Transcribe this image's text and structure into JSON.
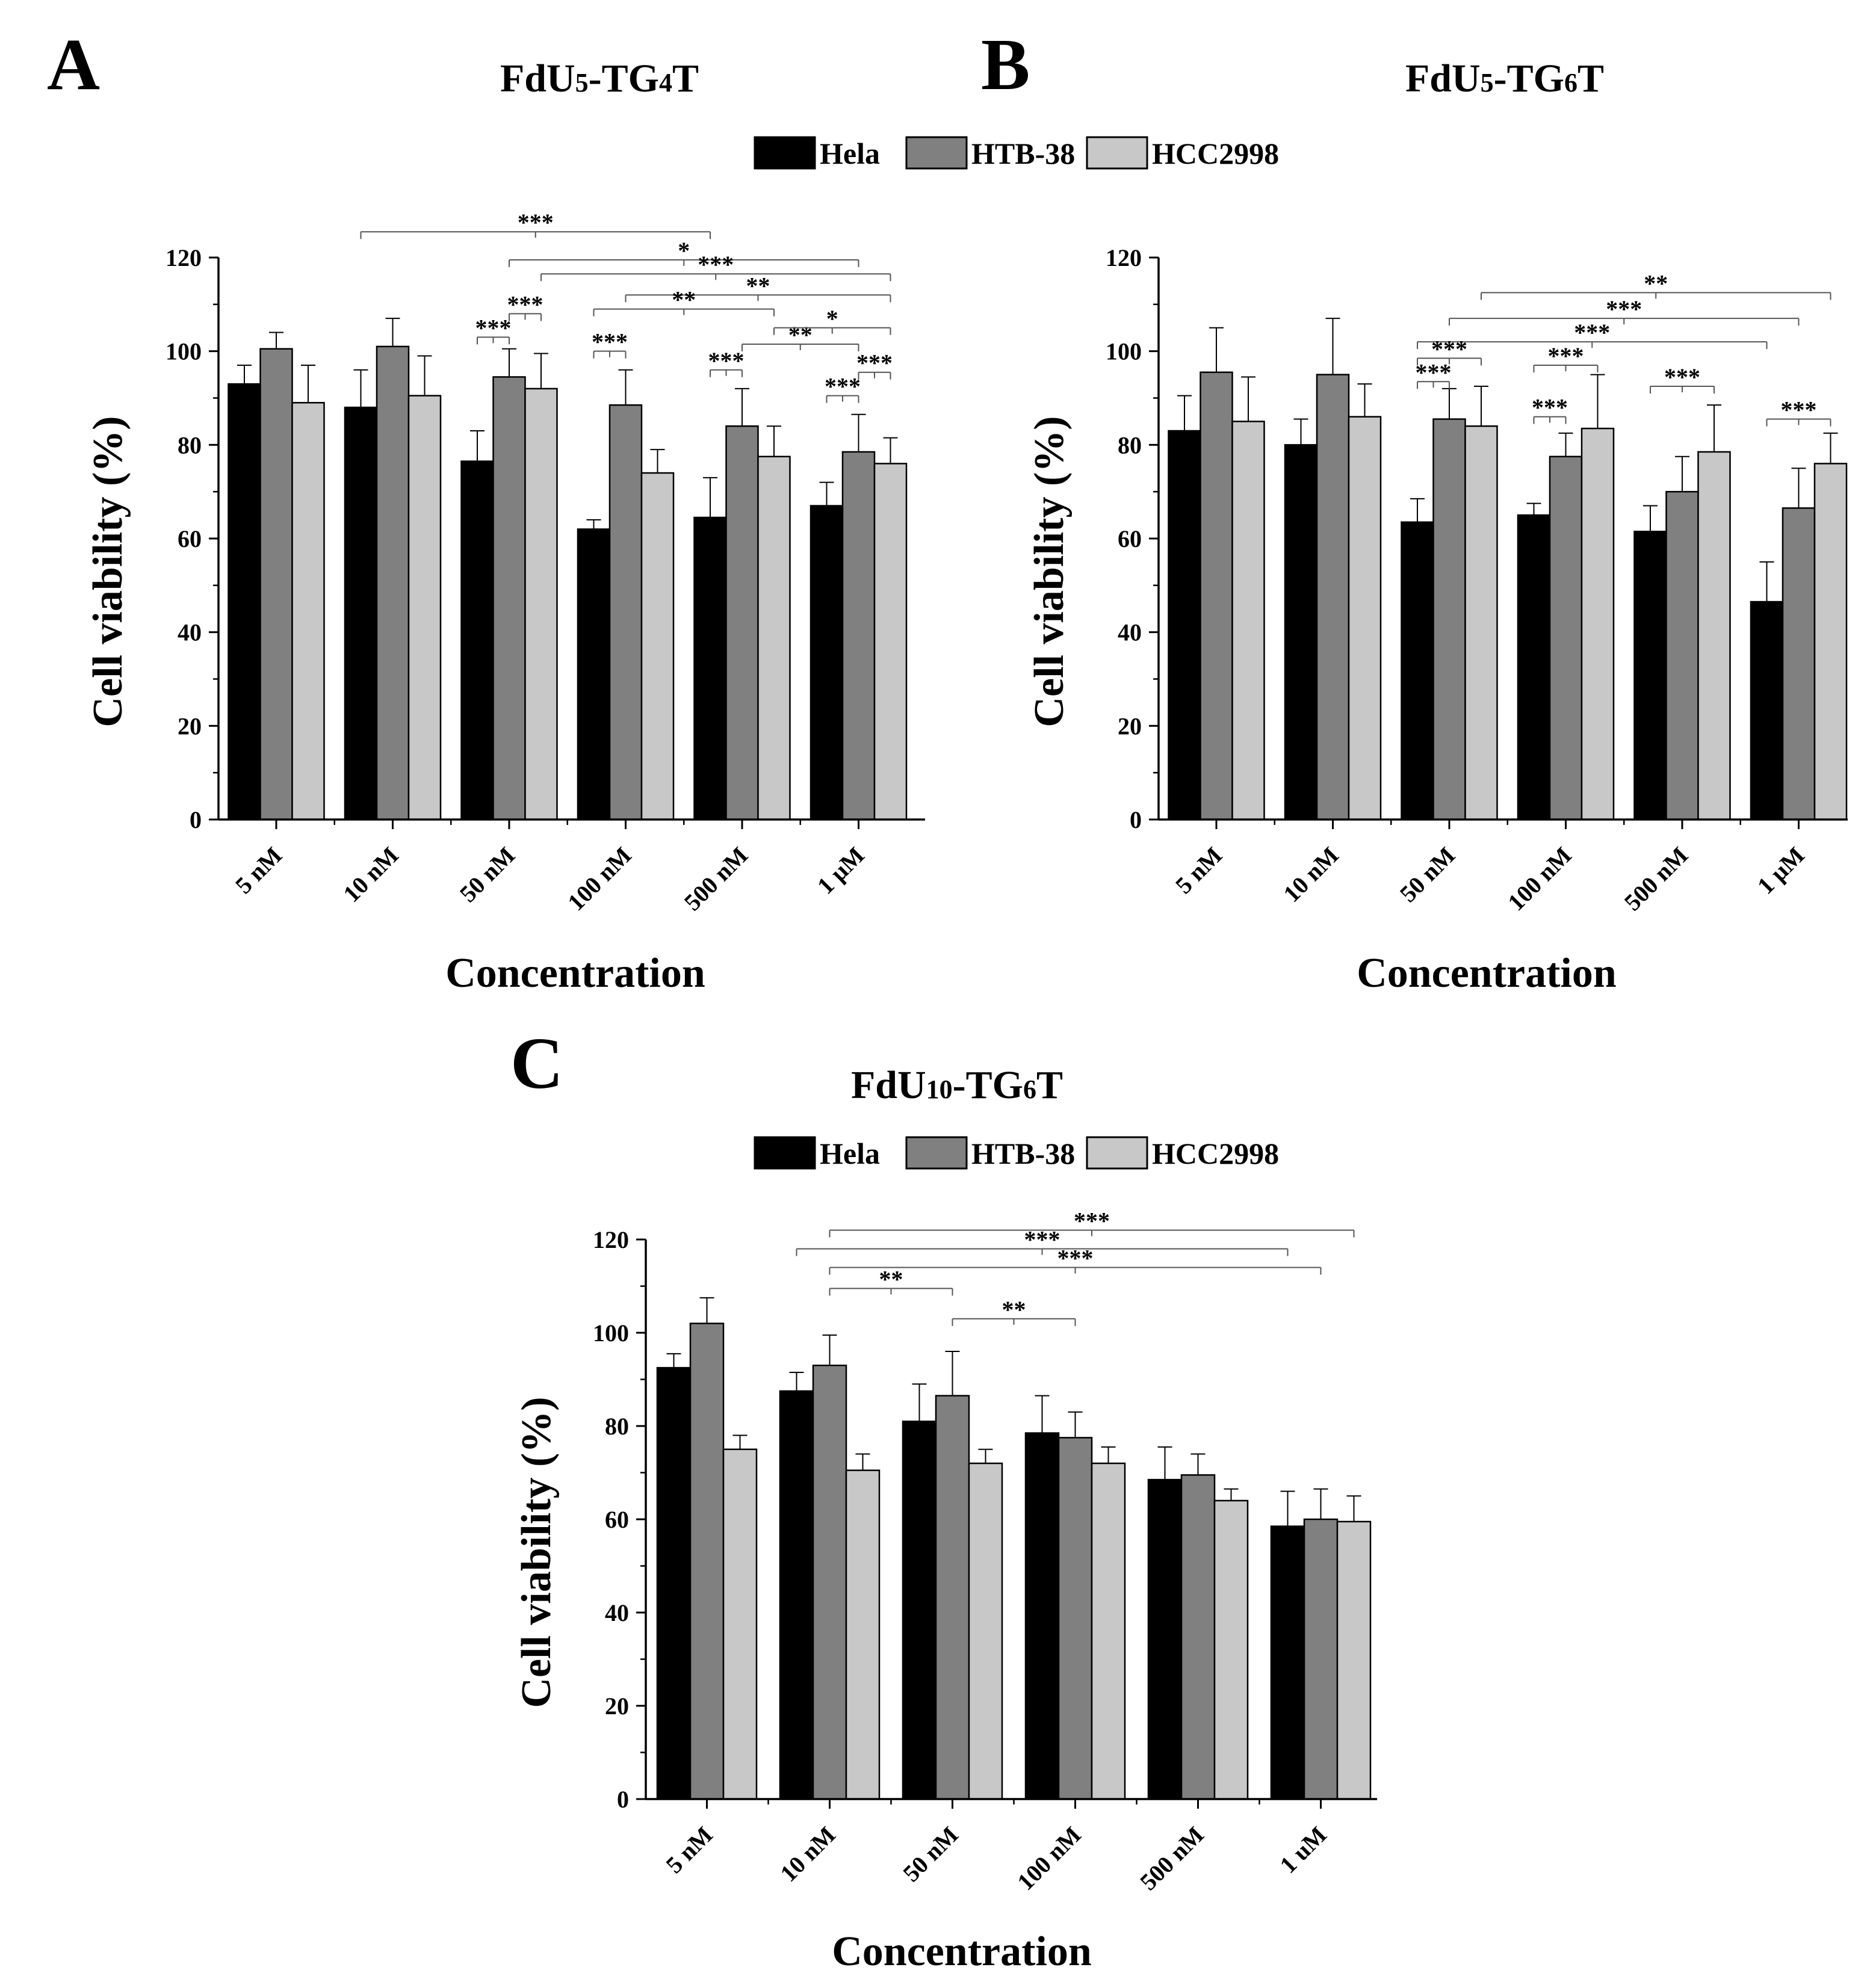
{
  "legend": {
    "items": [
      {
        "label": "Hela",
        "color": "#000000"
      },
      {
        "label": "HTB-38",
        "color": "#808080"
      },
      {
        "label": "HCC2998",
        "color": "#c8c8c8"
      }
    ]
  },
  "chart_data": [
    {
      "panel": "A",
      "type": "bar",
      "title": "FdU",
      "title_parts": {
        "a": "FdU",
        "b": "5",
        "c": "-TG",
        "d": "4",
        "e": "T"
      },
      "xlabel": "Concentration",
      "ylabel": "Cell viability (%)",
      "ylim": [
        0,
        120
      ],
      "yticks": [
        0,
        20,
        40,
        60,
        80,
        100,
        120
      ],
      "categories": [
        "5 nM",
        "10 nM",
        "50 nM",
        "100 nM",
        "500 nM",
        "1 µM"
      ],
      "series": [
        {
          "name": "Hela",
          "values": [
            93,
            88,
            76.5,
            62,
            64.5,
            67
          ],
          "errors": [
            4,
            8,
            6.5,
            2,
            8.5,
            5
          ]
        },
        {
          "name": "HTB-38",
          "values": [
            100.5,
            101,
            94.5,
            88.5,
            84,
            78.5
          ],
          "errors": [
            3.5,
            6,
            6,
            7.5,
            8,
            8
          ]
        },
        {
          "name": "HCC2998",
          "values": [
            89,
            90.5,
            92,
            74,
            77.5,
            76
          ],
          "errors": [
            8,
            8.5,
            7.5,
            5,
            6.5,
            5.5
          ]
        }
      ],
      "significance": [
        {
          "from": [
            1,
            0
          ],
          "to": [
            4,
            0
          ],
          "value": 125.5,
          "label": "***"
        },
        {
          "from": [
            2,
            1
          ],
          "to": [
            5,
            1
          ],
          "value": 119.5,
          "label": "*"
        },
        {
          "from": [
            2,
            2
          ],
          "to": [
            5,
            2
          ],
          "value": 116.5,
          "label": "***"
        },
        {
          "from": [
            3,
            1
          ],
          "to": [
            5,
            2
          ],
          "value": 112,
          "label": "**"
        },
        {
          "from": [
            3,
            0
          ],
          "to": [
            4,
            2
          ],
          "value": 109,
          "label": "**"
        },
        {
          "from": [
            2,
            0
          ],
          "to": [
            2,
            1
          ],
          "value": 103,
          "label": "***"
        },
        {
          "from": [
            2,
            1
          ],
          "to": [
            2,
            2
          ],
          "value": 108,
          "label": "***"
        },
        {
          "from": [
            3,
            0
          ],
          "to": [
            3,
            1
          ],
          "value": 100,
          "label": "***"
        },
        {
          "from": [
            4,
            1
          ],
          "to": [
            5,
            1
          ],
          "value": 101.5,
          "label": "**"
        },
        {
          "from": [
            4,
            2
          ],
          "to": [
            5,
            2
          ],
          "value": 105,
          "label": "*"
        },
        {
          "from": [
            4,
            0
          ],
          "to": [
            4,
            1
          ],
          "value": 96,
          "label": "***"
        },
        {
          "from": [
            5,
            0
          ],
          "to": [
            5,
            1
          ],
          "value": 90.5,
          "label": "***"
        },
        {
          "from": [
            5,
            1
          ],
          "to": [
            5,
            2
          ],
          "value": 95.5,
          "label": "***"
        }
      ]
    },
    {
      "panel": "B",
      "type": "bar",
      "title": "FdU",
      "title_parts": {
        "a": "FdU",
        "b": "5",
        "c": "-TG",
        "d": "6",
        "e": "T"
      },
      "xlabel": "Concentration",
      "ylabel": "Cell viability (%)",
      "ylim": [
        0,
        120
      ],
      "yticks": [
        0,
        20,
        40,
        60,
        80,
        100,
        120
      ],
      "categories": [
        "5 nM",
        "10 nM",
        "50 nM",
        "100 nM",
        "500 nM",
        "1 µM"
      ],
      "series": [
        {
          "name": "Hela",
          "values": [
            83,
            80,
            63.5,
            65,
            61.5,
            46.5
          ],
          "errors": [
            7.5,
            5.5,
            5,
            2.5,
            5.5,
            8.5
          ]
        },
        {
          "name": "HTB-38",
          "values": [
            95.5,
            95,
            85.5,
            77.5,
            70,
            66.5
          ],
          "errors": [
            9.5,
            12,
            6.5,
            5,
            7.5,
            8.5
          ]
        },
        {
          "name": "HCC2998",
          "values": [
            85,
            86,
            84,
            83.5,
            78.5,
            76
          ],
          "errors": [
            9.5,
            7,
            8.5,
            11.5,
            10,
            6.5
          ]
        }
      ],
      "significance": [
        {
          "from": [
            2,
            2
          ],
          "to": [
            5,
            2
          ],
          "value": 112.5,
          "label": "**"
        },
        {
          "from": [
            2,
            1
          ],
          "to": [
            5,
            1
          ],
          "value": 107,
          "label": "***"
        },
        {
          "from": [
            2,
            0
          ],
          "to": [
            5,
            0
          ],
          "value": 102,
          "label": "***"
        },
        {
          "from": [
            2,
            0
          ],
          "to": [
            2,
            1
          ],
          "value": 93.5,
          "label": "***"
        },
        {
          "from": [
            2,
            0
          ],
          "to": [
            2,
            2
          ],
          "value": 98.5,
          "label": "***"
        },
        {
          "from": [
            3,
            0
          ],
          "to": [
            3,
            2
          ],
          "value": 97,
          "label": "***"
        },
        {
          "from": [
            3,
            0
          ],
          "to": [
            3,
            1
          ],
          "value": 86,
          "label": "***"
        },
        {
          "from": [
            4,
            0
          ],
          "to": [
            4,
            2
          ],
          "value": 92.5,
          "label": "***"
        },
        {
          "from": [
            5,
            0
          ],
          "to": [
            5,
            2
          ],
          "value": 85.5,
          "label": "***"
        }
      ]
    },
    {
      "panel": "C",
      "type": "bar",
      "title": "FdU",
      "title_parts": {
        "a": "FdU",
        "b": "10",
        "c": "-TG",
        "d": "6",
        "e": "T"
      },
      "xlabel": "Concentration",
      "ylabel": "Cell viability (%)",
      "ylim": [
        0,
        120
      ],
      "yticks": [
        0,
        20,
        40,
        60,
        80,
        100,
        120
      ],
      "categories": [
        "5 nM",
        "10 nM",
        "50 nM",
        "100 nM",
        "500 nM",
        "1 uM"
      ],
      "series": [
        {
          "name": "Hela",
          "values": [
            92.5,
            87.5,
            81,
            78.5,
            68.5,
            58.5
          ],
          "errors": [
            3,
            4,
            8,
            8,
            7,
            7.5
          ]
        },
        {
          "name": "HTB-38",
          "values": [
            102,
            93,
            86.5,
            77.5,
            69.5,
            60
          ],
          "errors": [
            5.5,
            6.5,
            9.5,
            5.5,
            4.5,
            6.5
          ]
        },
        {
          "name": "HCC2998",
          "values": [
            75,
            70.5,
            72,
            72,
            64,
            59.5
          ],
          "errors": [
            3,
            3.5,
            3,
            3.5,
            2.5,
            5.5
          ]
        }
      ],
      "significance": [
        {
          "from": [
            1,
            1
          ],
          "to": [
            5,
            2
          ],
          "value": 122,
          "label": "***"
        },
        {
          "from": [
            1,
            0
          ],
          "to": [
            5,
            0
          ],
          "value": 118,
          "label": "***"
        },
        {
          "from": [
            1,
            1
          ],
          "to": [
            5,
            1
          ],
          "value": 114,
          "label": "***"
        },
        {
          "from": [
            1,
            1
          ],
          "to": [
            2,
            1
          ],
          "value": 109.5,
          "label": "**"
        },
        {
          "from": [
            2,
            1
          ],
          "to": [
            3,
            1
          ],
          "value": 103,
          "label": "**"
        }
      ]
    }
  ]
}
